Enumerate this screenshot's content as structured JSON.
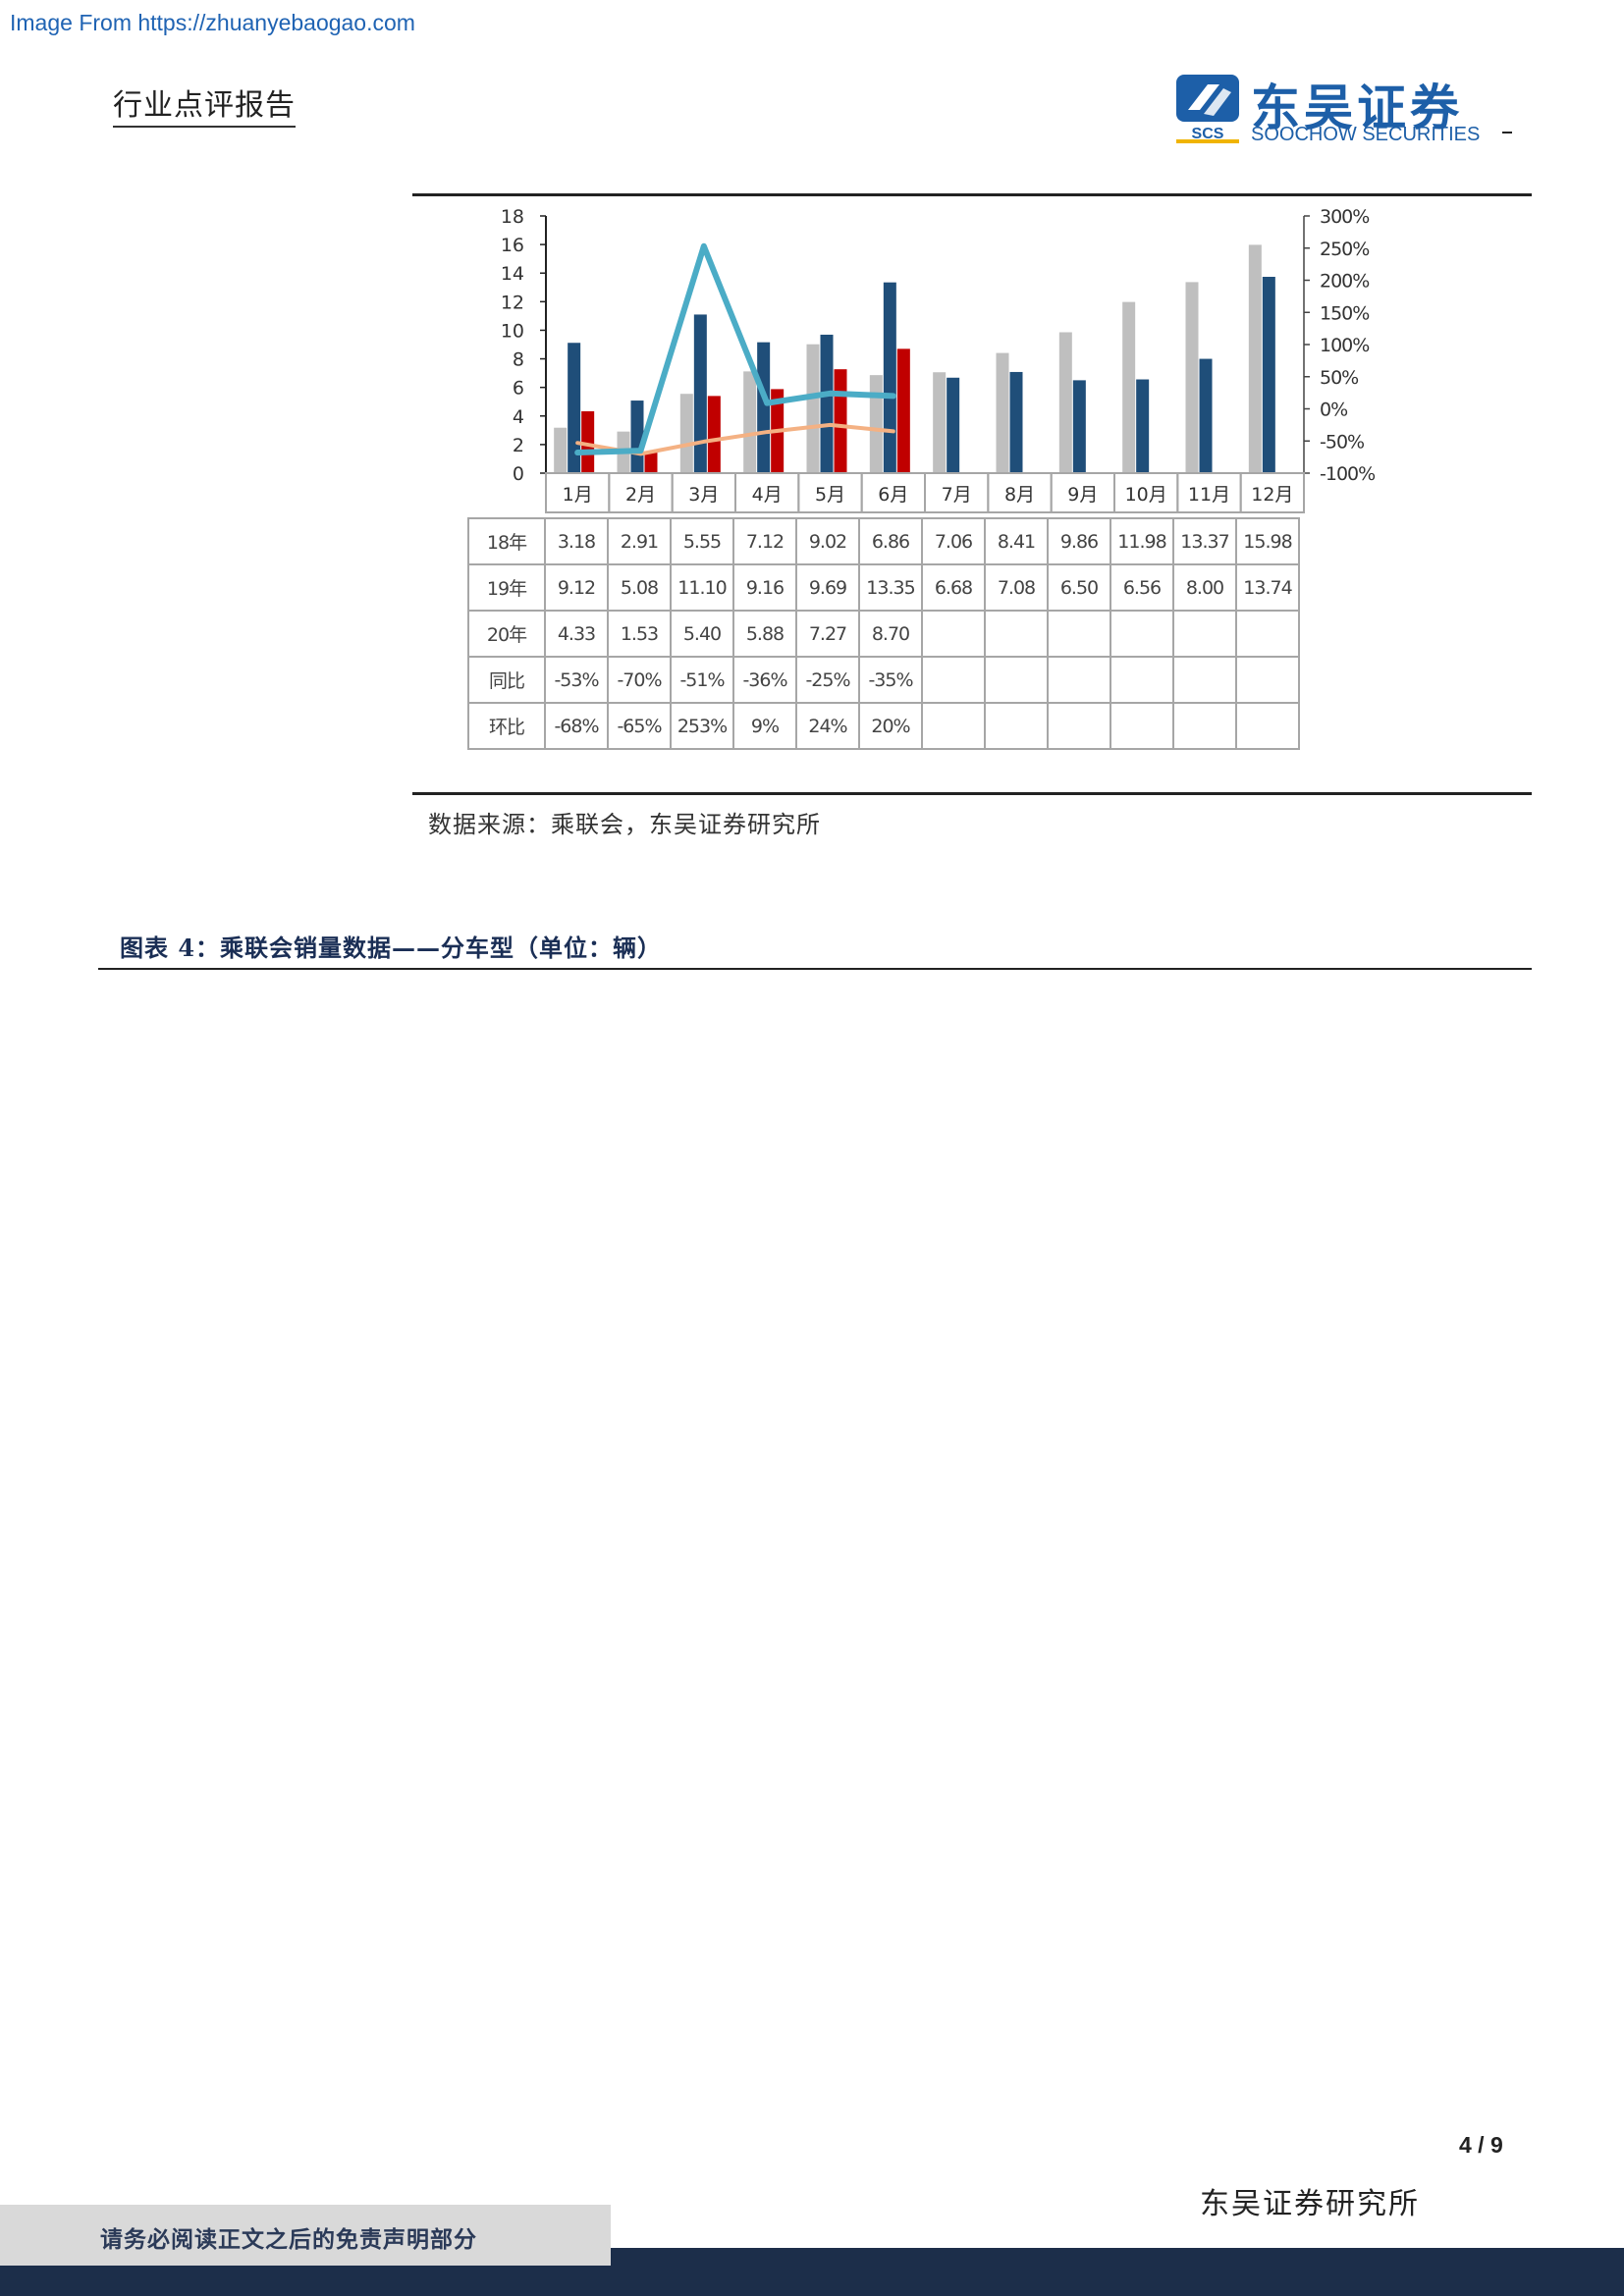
{
  "header": {
    "watermark": "Image From https://zhuanyebaogao.com",
    "report_type": "行业点评报告",
    "logo_mark": "SCS",
    "logo_name": "东吴证券",
    "logo_en": "SOOCHOW SECURITIES"
  },
  "chart_data": {
    "type": "bar",
    "categories": [
      "1月",
      "2月",
      "3月",
      "4月",
      "5月",
      "6月",
      "7月",
      "8月",
      "9月",
      "10月",
      "11月",
      "12月"
    ],
    "y_left_ticks": [
      "0",
      "2",
      "4",
      "6",
      "8",
      "10",
      "12",
      "14",
      "16",
      "18"
    ],
    "y_left_range": [
      0,
      18
    ],
    "y_right_ticks": [
      "-100%",
      "-50%",
      "0%",
      "50%",
      "100%",
      "150%",
      "200%",
      "250%",
      "300%"
    ],
    "y_right_range": [
      -100,
      300
    ],
    "series": [
      {
        "name": "18年",
        "kind": "bar",
        "color": "#bfbfbf",
        "values": [
          3.18,
          2.91,
          5.55,
          7.12,
          9.02,
          6.86,
          7.06,
          8.41,
          9.86,
          11.98,
          13.37,
          15.98
        ]
      },
      {
        "name": "19年",
        "kind": "bar",
        "color": "#1f4e79",
        "values": [
          9.12,
          5.08,
          11.1,
          9.16,
          9.69,
          13.35,
          6.68,
          7.08,
          6.5,
          6.56,
          8.0,
          13.74
        ]
      },
      {
        "name": "20年",
        "kind": "bar",
        "color": "#c00000",
        "values": [
          4.33,
          1.53,
          5.4,
          5.88,
          7.27,
          8.7,
          null,
          null,
          null,
          null,
          null,
          null
        ]
      },
      {
        "name": "同比",
        "kind": "line",
        "axis": "right",
        "color": "#f4b183",
        "values": [
          -53,
          -70,
          -51,
          -36,
          -25,
          -35,
          null,
          null,
          null,
          null,
          null,
          null
        ]
      },
      {
        "name": "环比",
        "kind": "line",
        "axis": "right",
        "color": "#4bacc6",
        "values": [
          -68,
          -65,
          253,
          9,
          24,
          20,
          null,
          null,
          null,
          null,
          null,
          null
        ]
      }
    ],
    "table": {
      "rows": [
        {
          "label": "18年",
          "cells": [
            "3.18",
            "2.91",
            "5.55",
            "7.12",
            "9.02",
            "6.86",
            "7.06",
            "8.41",
            "9.86",
            "11.98",
            "13.37",
            "15.98"
          ]
        },
        {
          "label": "19年",
          "cells": [
            "9.12",
            "5.08",
            "11.10",
            "9.16",
            "9.69",
            "13.35",
            "6.68",
            "7.08",
            "6.50",
            "6.56",
            "8.00",
            "13.74"
          ]
        },
        {
          "label": "20年",
          "cells": [
            "4.33",
            "1.53",
            "5.40",
            "5.88",
            "7.27",
            "8.70",
            "",
            "",
            "",
            "",
            "",
            ""
          ]
        },
        {
          "label": "同比",
          "cells": [
            "-53%",
            "-70%",
            "-51%",
            "-36%",
            "-25%",
            "-35%",
            "",
            "",
            "",
            "",
            "",
            ""
          ]
        },
        {
          "label": "环比",
          "cells": [
            "-68%",
            "-65%",
            "253%",
            "9%",
            "24%",
            "20%",
            "",
            "",
            "",
            "",
            "",
            ""
          ]
        }
      ]
    }
  },
  "source_note": "数据来源：乘联会，东吴证券研究所",
  "figure_title": "图表 4：乘联会销量数据——分车型（单位：辆）",
  "footer": {
    "page_number": "4 / 9",
    "org_name": "东吴证券研究所",
    "disclaimer": "请务必阅读正文之后的免责声明部分"
  }
}
